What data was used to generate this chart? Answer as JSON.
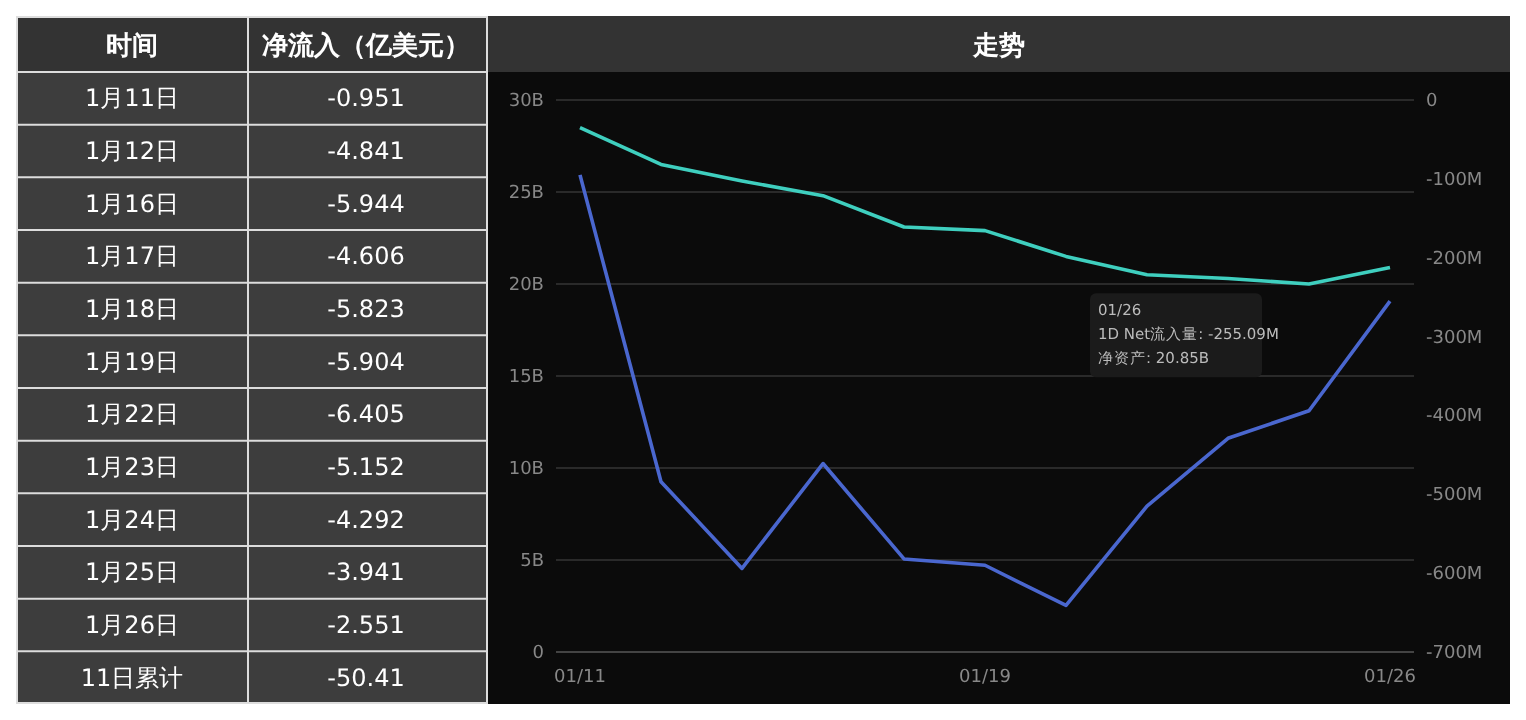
{
  "chart_data": [
    {
      "type": "other",
      "xlabel": "时间",
      "ylabel": "净流入（亿美元）",
      "categories": [
        "1月11日",
        "1月12日",
        "1月16日",
        "1月17日",
        "1月18日",
        "1月19日",
        "1月22日",
        "1月23日",
        "1月24日",
        "1月25日",
        "1月26日",
        "11日累计"
      ],
      "values": [
        -0.951,
        -4.841,
        -5.944,
        -4.606,
        -5.823,
        -5.904,
        -6.405,
        -5.152,
        -4.292,
        -3.941,
        -2.551,
        -50.41
      ],
      "data_labels": true
    },
    {
      "type": "line",
      "title": "走势",
      "categories": [
        "01/11",
        null,
        null,
        null,
        null,
        "01/19",
        null,
        null,
        null,
        null,
        "01/26"
      ],
      "series": [
        {
          "color": "#3fcfbf",
          "values": [
            28.5,
            26.5,
            25.6,
            24.8,
            23.1,
            22.9,
            21.5,
            20.5,
            20.3,
            20.0,
            20.9
          ]
        },
        {
          "color": "#4a67cf",
          "axis": "y2",
          "values": [
            -95,
            -484,
            -594,
            -461,
            -582,
            -590,
            -641,
            -515,
            -429,
            -394,
            -255
          ]
        }
      ],
      "ylim": [
        0,
        30
      ],
      "yticks": [
        0,
        {
          "value": 5,
          "label": "5B"
        },
        {
          "value": 10,
          "label": "10B"
        },
        {
          "value": 15,
          "label": "15B"
        },
        {
          "value": 20,
          "label": "20B"
        },
        {
          "value": 25,
          "label": "25B"
        },
        {
          "value": 30,
          "label": "30B"
        }
      ],
      "y2lim": [
        -700,
        0
      ],
      "y2ticks": [
        {
          "value": -700,
          "label": "-700M"
        },
        {
          "value": -600,
          "label": "-600M"
        },
        {
          "value": -500,
          "label": "-500M"
        },
        {
          "value": -400,
          "label": "-400M"
        },
        {
          "value": -300,
          "label": "-300M"
        },
        {
          "value": -200,
          "label": "-200M"
        },
        {
          "value": -100,
          "label": "-100M"
        },
        0
      ],
      "grid": "y",
      "annotations": [
        "01/26",
        "1D Net流入量: -255.09M",
        "净资产: 20.85B"
      ]
    }
  ]
}
